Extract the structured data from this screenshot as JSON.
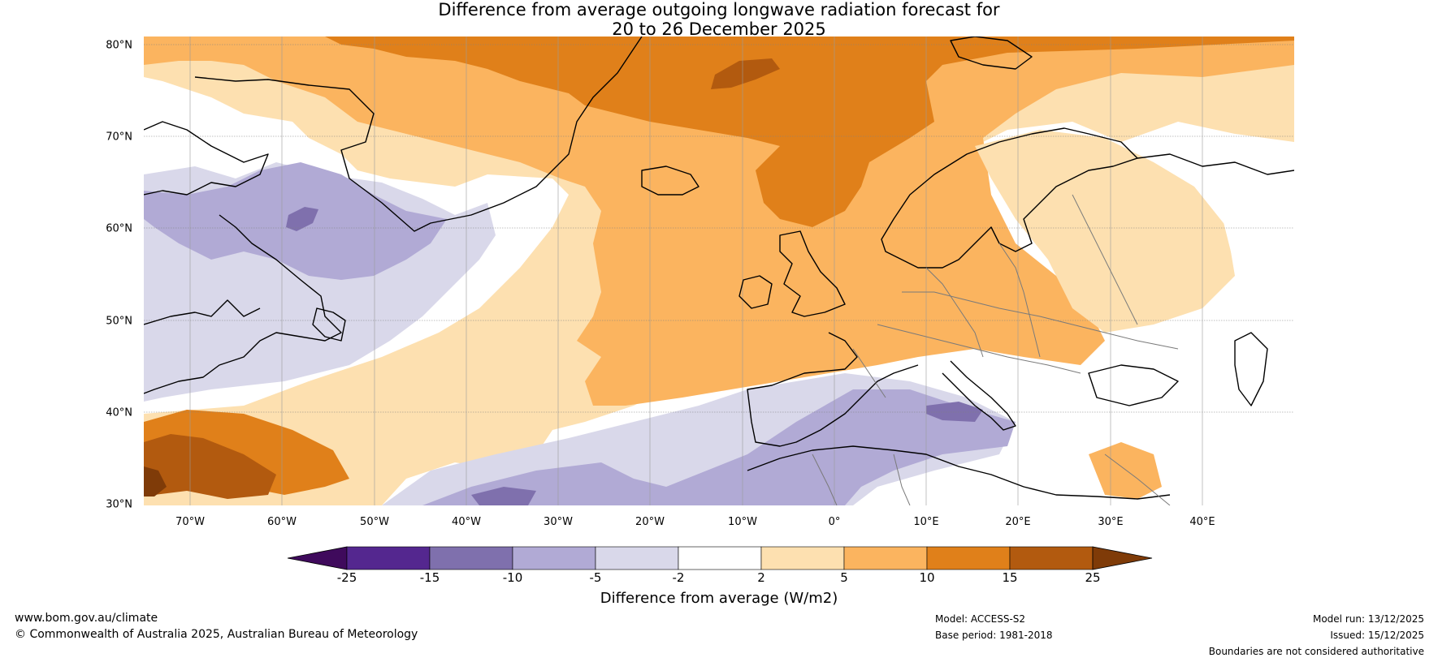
{
  "title": {
    "line1": "Difference from average outgoing longwave radiation forecast for",
    "line2": "20 to 26 December 2025"
  },
  "map": {
    "lat_labels": [
      "80°N",
      "70°N",
      "60°N",
      "50°N",
      "40°N",
      "30°N"
    ],
    "lon_labels": [
      "70°W",
      "60°W",
      "50°W",
      "40°W",
      "30°W",
      "20°W",
      "10°W",
      "0°",
      "10°E",
      "20°E",
      "30°E",
      "40°E"
    ],
    "lat_range": [
      30,
      81
    ],
    "lon_range": [
      -75,
      50
    ]
  },
  "colorbar": {
    "ticks": [
      "-25",
      "-15",
      "-10",
      "-5",
      "-2",
      "2",
      "5",
      "10",
      "15",
      "25"
    ],
    "colors": [
      "#3f0a5c",
      "#54278f",
      "#7f70ad",
      "#b1aad5",
      "#d9d8ea",
      "#ffffff",
      "#fde0b0",
      "#fbb45f",
      "#e0801a",
      "#b25a0f",
      "#7f3b08"
    ],
    "label": "Difference from average (W/m2)"
  },
  "footer": {
    "website": "www.bom.gov.au/climate",
    "copyright": "© Commonwealth of Australia 2025, Australian Bureau of Meteorology",
    "model": "Model: ACCESS-S2",
    "base_period": "Base period: 1981-2018",
    "model_run": "Model run: 13/12/2025",
    "issued": "Issued: 15/12/2025",
    "disclaimer": "Boundaries are not considered authoritative"
  }
}
